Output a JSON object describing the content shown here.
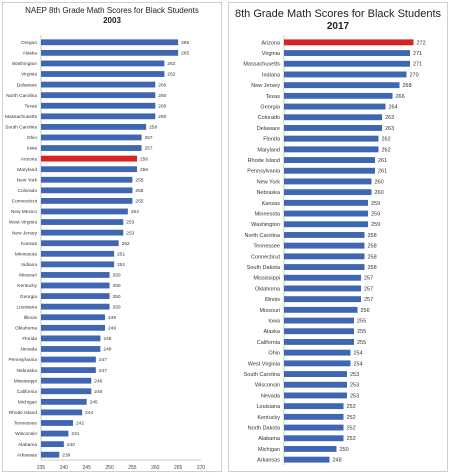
{
  "chart_data": [
    {
      "type": "bar",
      "orientation": "horizontal",
      "title": "NAEP 8th Grade Math Scores for Black Students",
      "subtitle": "2003",
      "categories": [
        "Oregon",
        "Alaska",
        "Washington",
        "Virginia",
        "Delaware",
        "North Carolina",
        "Texas",
        "Massachusetts",
        "South Carolina",
        "Ohio",
        "Iowa",
        "Arizona",
        "Maryland",
        "New York",
        "Colorado",
        "Connecticut",
        "New Mexico",
        "West Virginia",
        "New Jersey",
        "Kansas",
        "Minnesota",
        "Indiana",
        "Missouri",
        "Kentucky",
        "Georgia",
        "Louisiana",
        "Illinois",
        "Oklahoma",
        "Florida",
        "Nevada",
        "Pennsylvania",
        "Nebraska",
        "Mississippi",
        "California",
        "Michigan",
        "Rhode Island",
        "Tennessee",
        "Wisconsin",
        "Alabama",
        "Arkansas"
      ],
      "values": [
        265,
        265,
        262,
        262,
        260,
        260,
        260,
        260,
        258,
        257,
        257,
        256,
        256,
        255,
        255,
        255,
        254,
        253,
        253,
        252,
        251,
        251,
        250,
        250,
        250,
        250,
        249,
        249,
        248,
        248,
        247,
        247,
        246,
        246,
        245,
        244,
        242,
        241,
        240,
        239
      ],
      "highlight": "Arizona",
      "bar_color": "#3f67b1",
      "highlight_color": "#d92121",
      "xlim": [
        235,
        270
      ],
      "xticks": [
        "235",
        "240",
        "245",
        "250",
        "255",
        "260",
        "265",
        "270"
      ],
      "grid": false,
      "legend": "none"
    },
    {
      "type": "bar",
      "orientation": "horizontal",
      "title": "8th Grade Math Scores for Black Students",
      "subtitle": "2017",
      "categories": [
        "Arizona",
        "Virginia",
        "Massachusetts",
        "Indiana",
        "New Jersey",
        "Texas",
        "Georgia",
        "Colorado",
        "Delaware",
        "Florida",
        "Maryland",
        "Rhode Island",
        "Pennsylvania",
        "New York",
        "Nebraska",
        "Kansas",
        "Minnesota",
        "Washington",
        "North Carolina",
        "Tennessee",
        "Connecticut",
        "South Dakota",
        "Mississippi",
        "Oklahoma",
        "Illinois",
        "Missouri",
        "Iowa",
        "Alaska",
        "California",
        "Ohio",
        "West Virginia",
        "South Carolina",
        "Wisconsin",
        "Nevada",
        "Louisiana",
        "Kentucky",
        "North Dakota",
        "Alabama",
        "Michigan",
        "Arkansas"
      ],
      "values": [
        272,
        271,
        271,
        270,
        268,
        266,
        264,
        263,
        263,
        262,
        262,
        261,
        261,
        260,
        260,
        259,
        259,
        259,
        258,
        258,
        258,
        258,
        257,
        257,
        257,
        256,
        255,
        255,
        255,
        254,
        254,
        253,
        253,
        253,
        252,
        252,
        252,
        252,
        250,
        248
      ],
      "highlight": "Arizona",
      "bar_color": "#3f67b1",
      "highlight_color": "#d92121",
      "xlim": [
        235,
        275
      ],
      "grid": false,
      "legend": "none"
    }
  ]
}
